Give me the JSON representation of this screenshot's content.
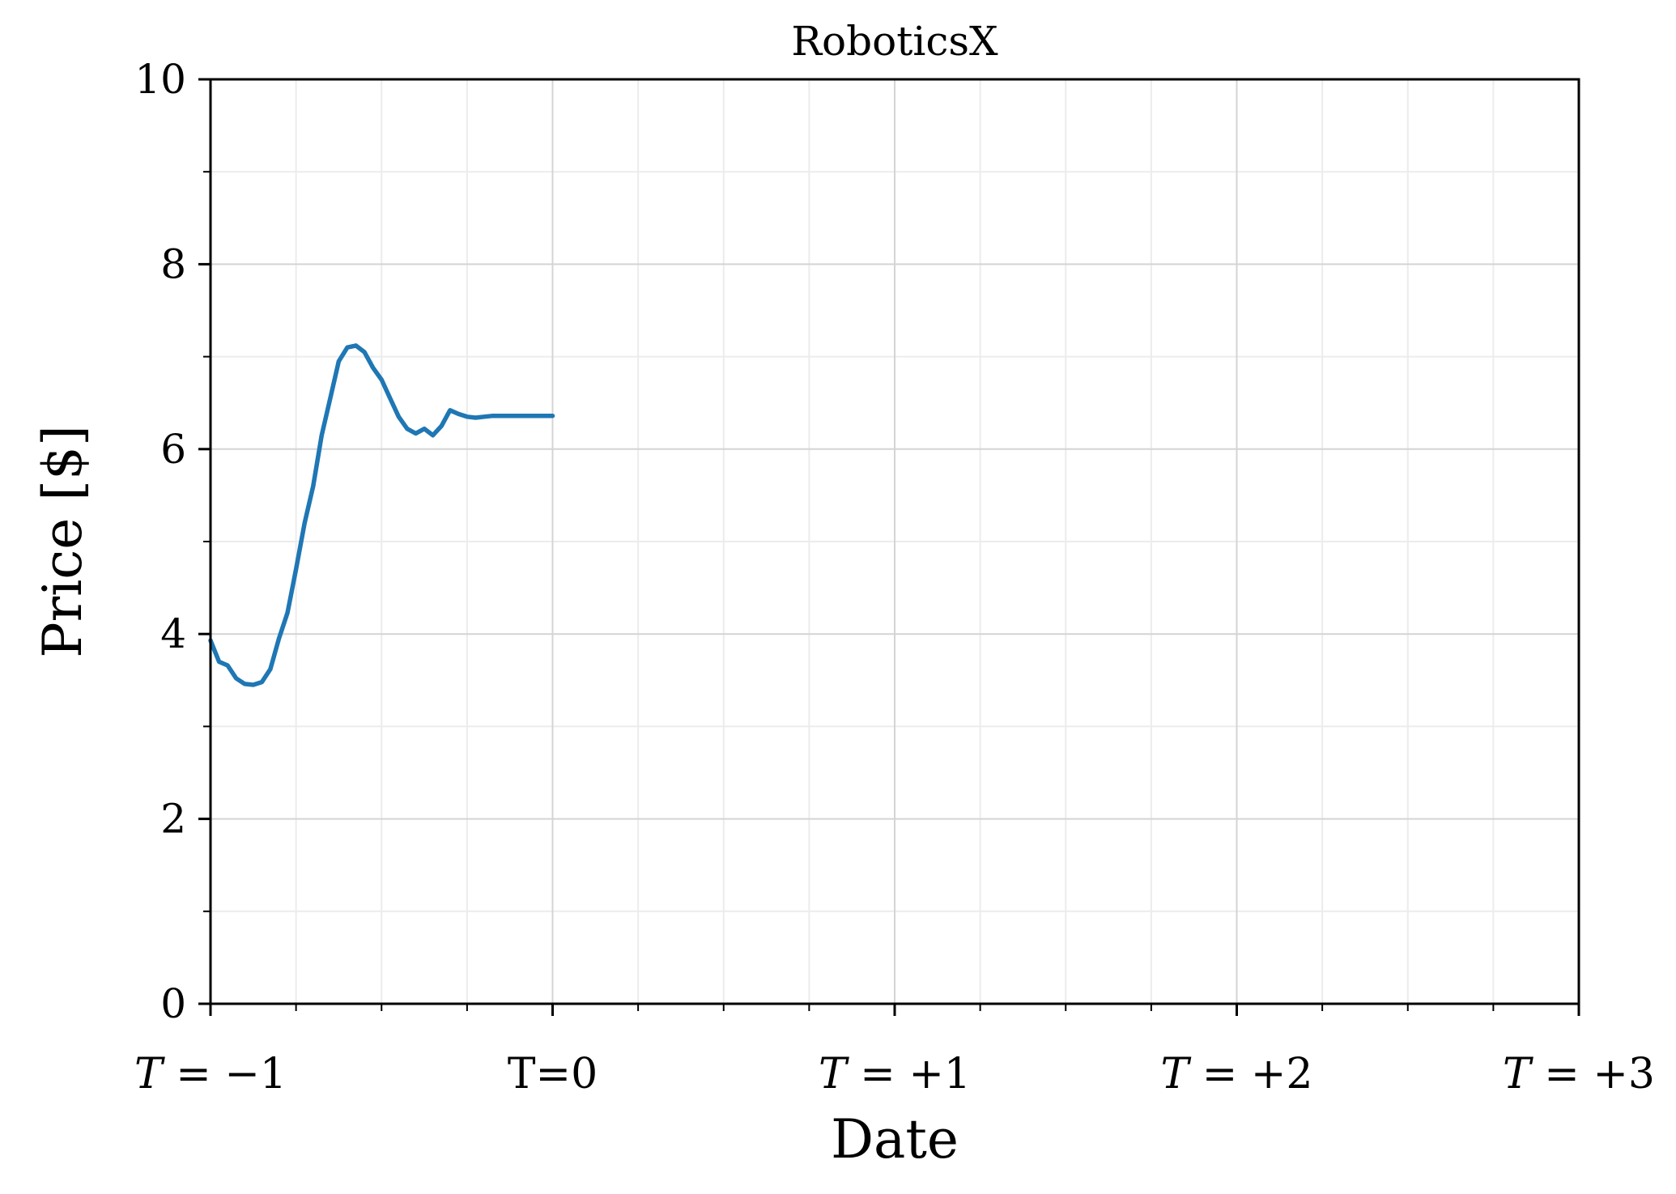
{
  "chart_data": {
    "type": "line",
    "title": "RoboticsX",
    "xlabel": "Date",
    "ylabel": "Price [$]",
    "xlim": [
      -1,
      3
    ],
    "ylim": [
      0,
      10
    ],
    "x_ticks": [
      {
        "value": -1,
        "label": "T = −1",
        "italic_T": true
      },
      {
        "value": 0,
        "label": "T=0",
        "italic_T": false
      },
      {
        "value": 1,
        "label": "T = +1",
        "italic_T": true
      },
      {
        "value": 2,
        "label": "T = +2",
        "italic_T": true
      },
      {
        "value": 3,
        "label": "T = +3",
        "italic_T": true
      }
    ],
    "y_ticks": [
      0,
      2,
      4,
      6,
      8,
      10
    ],
    "y_tick_labels": [
      "0",
      "2",
      "4",
      "6",
      "8",
      "10"
    ],
    "grid": true,
    "minor_grid": true,
    "series_color": "#1f77b4",
    "series": [
      {
        "name": "",
        "x": [
          -1.0,
          -0.975,
          -0.95,
          -0.925,
          -0.9,
          -0.875,
          -0.85,
          -0.825,
          -0.8,
          -0.775,
          -0.75,
          -0.725,
          -0.7,
          -0.675,
          -0.65,
          -0.625,
          -0.6,
          -0.575,
          -0.55,
          -0.525,
          -0.5,
          -0.475,
          -0.45,
          -0.425,
          -0.4,
          -0.375,
          -0.35,
          -0.325,
          -0.3,
          -0.275,
          -0.25,
          -0.225,
          -0.2,
          -0.175,
          -0.15,
          -0.125,
          -0.1,
          -0.075,
          -0.05,
          -0.025,
          0.0
        ],
        "y": [
          3.93,
          3.7,
          3.66,
          3.52,
          3.46,
          3.45,
          3.48,
          3.62,
          3.95,
          4.23,
          4.7,
          5.2,
          5.6,
          6.15,
          6.55,
          6.95,
          7.1,
          7.12,
          7.05,
          6.88,
          6.75,
          6.55,
          6.35,
          6.22,
          6.17,
          6.22,
          6.15,
          6.25,
          6.42,
          6.38,
          6.35,
          6.34,
          6.35,
          6.36,
          6.36,
          6.36,
          6.36,
          6.36,
          6.36,
          6.36,
          6.36
        ]
      }
    ]
  }
}
